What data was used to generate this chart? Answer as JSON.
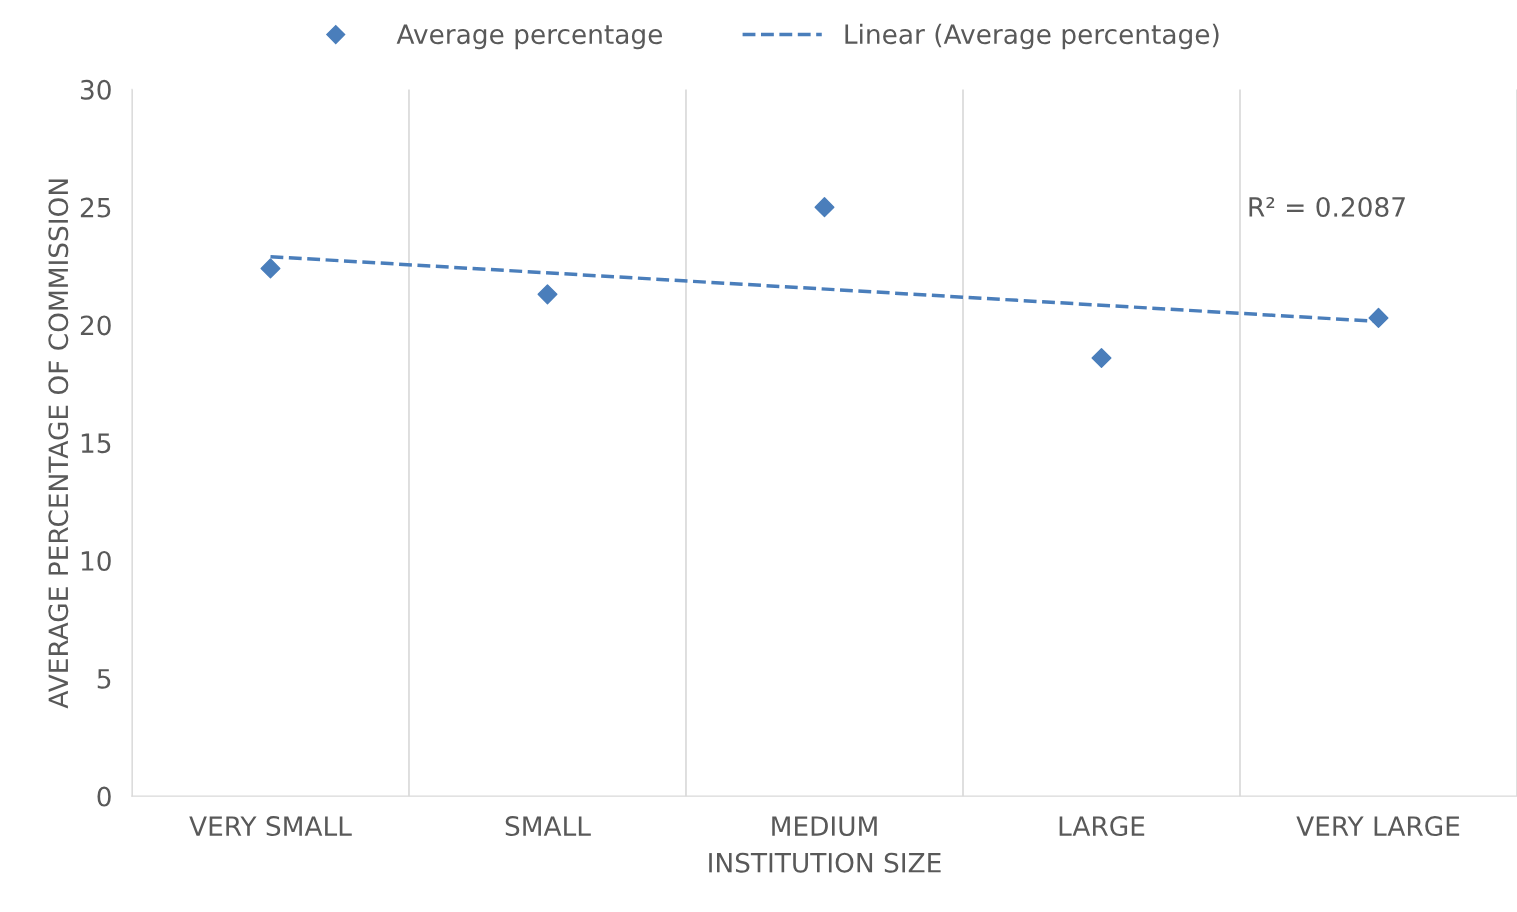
{
  "chart_data": {
    "type": "scatter",
    "xlabel": "INSTITUTION SIZE",
    "ylabel": "AVERAGE PERCENTAGE OF COMMISSION",
    "categories": [
      "VERY SMALL",
      "SMALL",
      "MEDIUM",
      "LARGE",
      "VERY LARGE"
    ],
    "series": [
      {
        "name": "Average percentage",
        "color": "#4a7ebb",
        "marker": "diamond",
        "values": [
          22.4,
          21.3,
          25.0,
          18.6,
          20.3
        ]
      },
      {
        "name": "Linear (Average percentage)",
        "type": "line",
        "color": "#4a7ebb",
        "line_style": "dashed",
        "marker": "none",
        "x": [
          "VERY SMALL",
          "VERY LARGE"
        ],
        "values": [
          22.9,
          20.15
        ]
      }
    ],
    "annotations": [
      "R² = 0.2087"
    ],
    "ylim": [
      0,
      30
    ],
    "yticks": [
      0,
      5,
      10,
      15,
      20,
      25,
      30
    ],
    "grid": "x",
    "legend": "top"
  }
}
